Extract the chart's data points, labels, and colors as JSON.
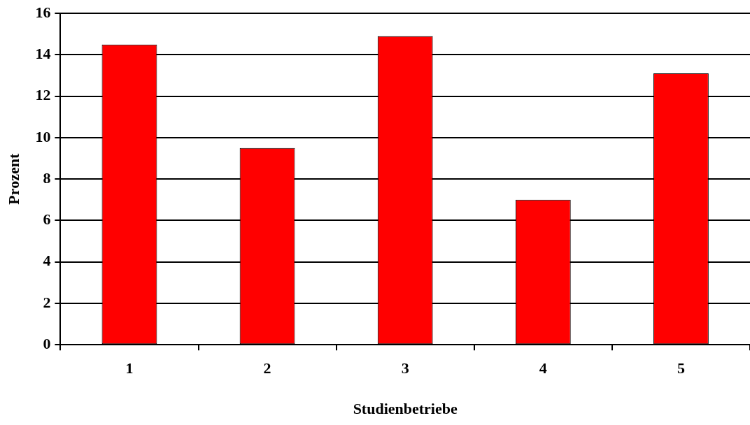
{
  "chart_data": {
    "type": "bar",
    "xlabel": "Studienbetriebe",
    "ylabel": "Prozent",
    "categories": [
      "1",
      "2",
      "3",
      "4",
      "5"
    ],
    "values": [
      14.5,
      9.5,
      14.9,
      7.0,
      13.1
    ],
    "color": "#ff0000",
    "ylim": [
      0,
      16
    ],
    "yticks": [
      0,
      2,
      4,
      6,
      8,
      10,
      12,
      14,
      16
    ],
    "grid": "y",
    "legend": false
  }
}
